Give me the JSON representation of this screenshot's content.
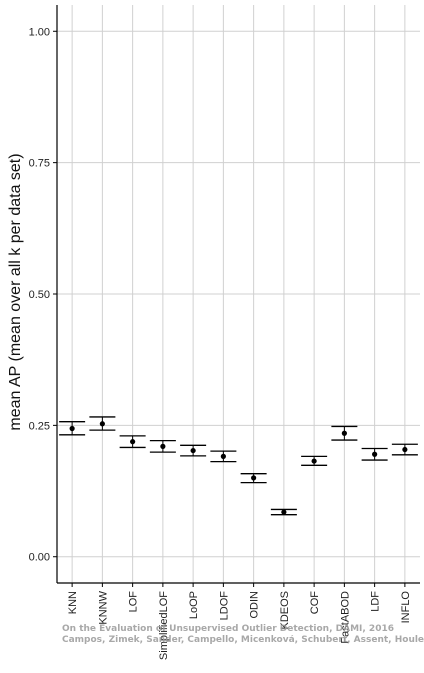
{
  "chart_data": {
    "type": "scatter",
    "title": "",
    "xlabel": "",
    "ylabel": "mean AP (mean over all k per data set)",
    "ylim": [
      -0.05,
      1.05
    ],
    "yticks": [
      "0.00",
      "0.25",
      "0.50",
      "0.75",
      "1.00"
    ],
    "grid": true,
    "categories": [
      "KNN",
      "KNNW",
      "LOF",
      "SimplifiedLOF",
      "LoOP",
      "LDOF",
      "ODIN",
      "KDEOS",
      "COF",
      "FastABOD",
      "LDF",
      "INFLO"
    ],
    "values": [
      0.244,
      0.253,
      0.219,
      0.21,
      0.202,
      0.191,
      0.15,
      0.085,
      0.182,
      0.235,
      0.195,
      0.204
    ],
    "error_low": [
      0.232,
      0.241,
      0.208,
      0.199,
      0.192,
      0.181,
      0.141,
      0.08,
      0.174,
      0.222,
      0.184,
      0.194
    ],
    "error_high": [
      0.257,
      0.266,
      0.23,
      0.221,
      0.212,
      0.201,
      0.158,
      0.09,
      0.191,
      0.248,
      0.206,
      0.214
    ]
  },
  "watermark": {
    "line1": "On the Evaluation of Unsupervised Outlier Detection, DAMI, 2016",
    "line2": "Campos, Zimek, Sander, Campello, Micenková, Schubert, Assent, Houle"
  },
  "colors": {
    "grid": "#d0d0d0",
    "axis": "#000000",
    "point": "#000000"
  }
}
